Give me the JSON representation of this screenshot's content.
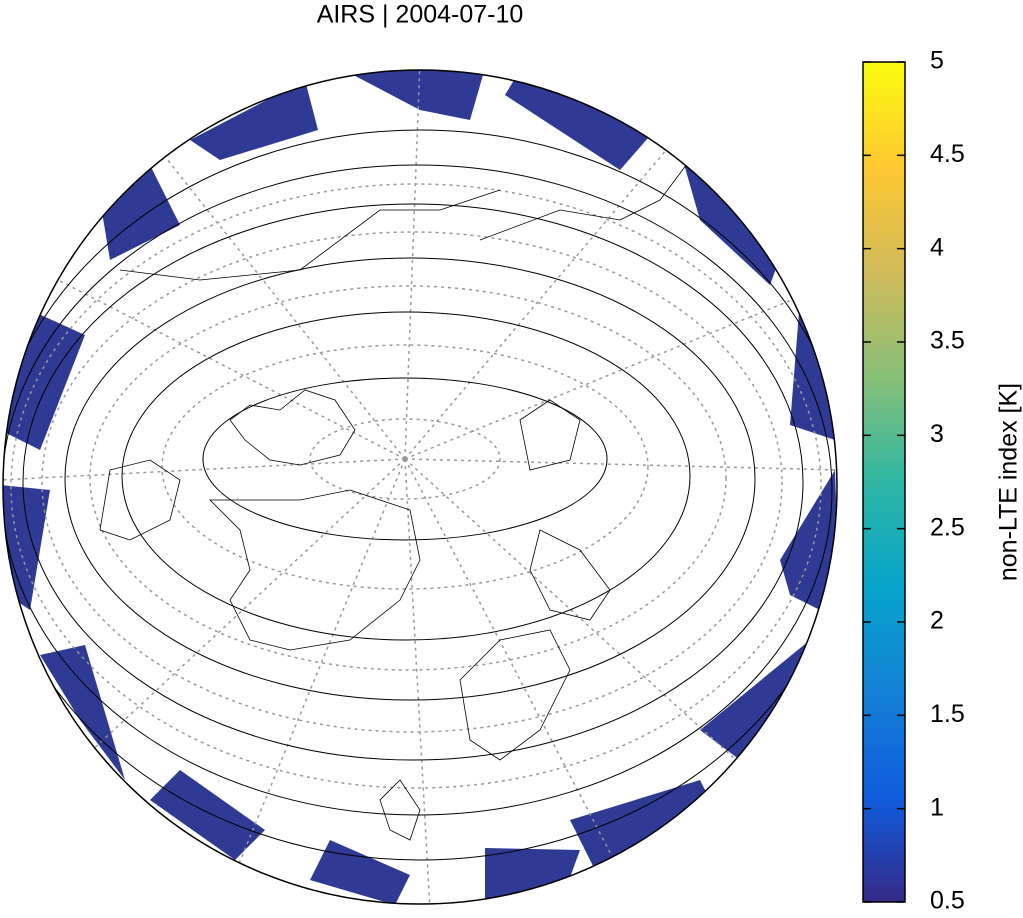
{
  "map": {
    "title": "AIRS | 2004-07-10",
    "colorbar": {
      "label": "non-LTE index [K]",
      "lim": [
        0.5,
        5
      ],
      "ticks": [
        0.5,
        1,
        1.5,
        2,
        2.5,
        3,
        3.5,
        4,
        4.5,
        5
      ],
      "colormap": [
        "#352a87",
        "#0f5cdd",
        "#1481d6",
        "#06a4ca",
        "#2eb7a4",
        "#87bf77",
        "#d1bb59",
        "#fec832",
        "#f9fb0e"
      ]
    }
  }
}
